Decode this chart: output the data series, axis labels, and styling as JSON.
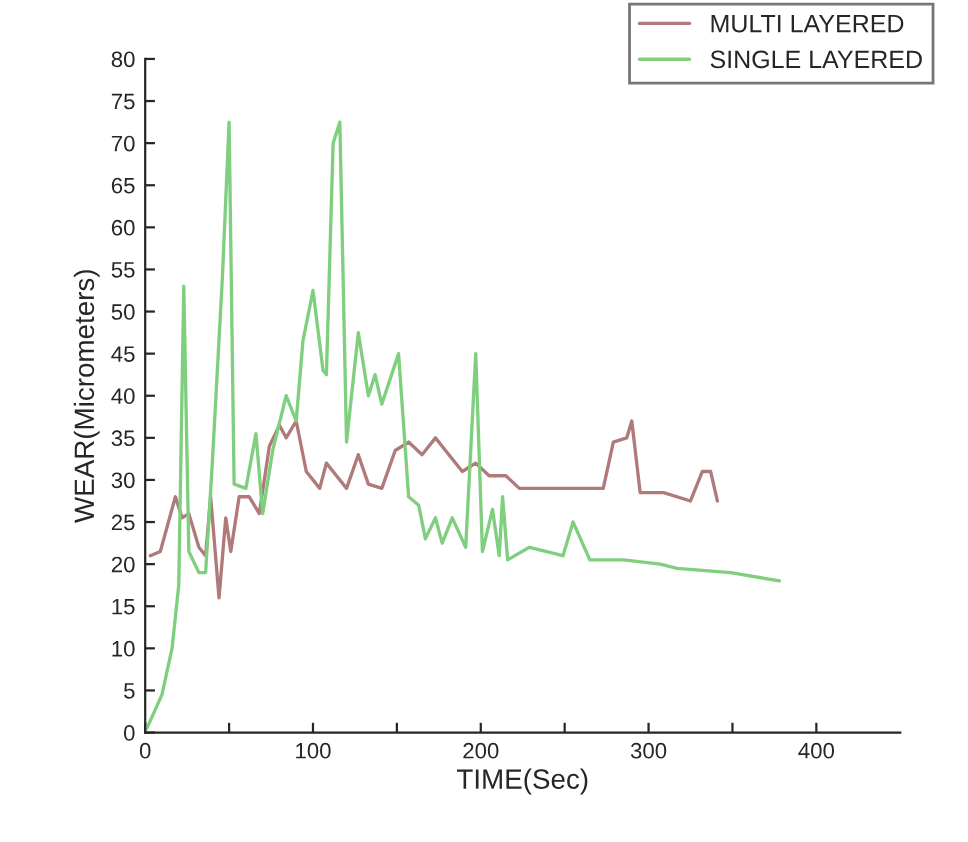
{
  "chart_data": {
    "type": "line",
    "xlabel": "TIME(Sec)",
    "ylabel": "WEAR(Micrometers)",
    "xlim": [
      0,
      450
    ],
    "ylim": [
      0,
      80
    ],
    "xticks": [
      0,
      {
        "value": 50,
        "label": null
      },
      100,
      {
        "value": 150,
        "label": null
      },
      200,
      {
        "value": 250,
        "label": null
      },
      300,
      {
        "value": 350,
        "label": null
      },
      400
    ],
    "yticks": [
      0,
      5,
      10,
      15,
      20,
      25,
      30,
      35,
      40,
      45,
      50,
      55,
      60,
      65,
      70,
      75,
      80
    ],
    "grid": false,
    "legend": "top right",
    "marker": "none",
    "line_style": "solid",
    "series": [
      {
        "name": "MULTI LAYERED",
        "color": "#b07a7a",
        "x": [
          3,
          9,
          18,
          22,
          26,
          32,
          36,
          39,
          44,
          48,
          51,
          56,
          62,
          68,
          74,
          80,
          84,
          90,
          96,
          104,
          108,
          114,
          120,
          127,
          133,
          141,
          149,
          157,
          165,
          173,
          181,
          189,
          197,
          205,
          215,
          223,
          237,
          257,
          273,
          279,
          287,
          290,
          295,
          309,
          325,
          332,
          337,
          341
        ],
        "values": [
          21,
          21.5,
          28,
          25.5,
          26,
          22,
          21,
          28,
          16,
          25.5,
          21.5,
          28,
          28,
          26,
          34,
          36.5,
          35,
          37,
          31,
          29,
          32,
          30.5,
          29,
          33,
          29.5,
          29,
          33.5,
          34.5,
          33,
          35,
          33,
          31,
          32,
          30.5,
          30.5,
          29,
          29,
          29,
          29,
          34.5,
          35,
          37,
          28.5,
          28.5,
          27.5,
          31,
          31,
          27.5
        ]
      },
      {
        "name": "SINGLE LAYERED",
        "color": "#7fcf7f",
        "x": [
          1,
          10,
          16,
          20,
          23,
          26,
          32,
          36,
          40,
          46,
          50,
          53,
          60,
          66,
          70,
          76,
          84,
          90,
          94,
          100,
          106,
          108,
          112,
          116,
          120,
          127,
          133,
          137,
          141,
          151,
          157,
          163,
          167,
          173,
          177,
          183,
          191,
          197,
          201,
          207,
          211,
          213,
          216,
          229,
          249,
          255,
          265,
          285,
          307,
          317,
          349,
          378
        ],
        "values": [
          0.5,
          4.5,
          10,
          17.5,
          53,
          21.5,
          19,
          19,
          32,
          54,
          72.5,
          29.5,
          29,
          35.5,
          26,
          33.5,
          40,
          37,
          46.5,
          52.5,
          43,
          42.5,
          70,
          72.5,
          34.5,
          47.5,
          40,
          42.5,
          39,
          45,
          28,
          27,
          23,
          25.5,
          22.5,
          25.5,
          22,
          45,
          21.5,
          26.5,
          21,
          28,
          20.5,
          22,
          21,
          25,
          20.5,
          20.5,
          20,
          19.5,
          19,
          18
        ]
      }
    ]
  }
}
